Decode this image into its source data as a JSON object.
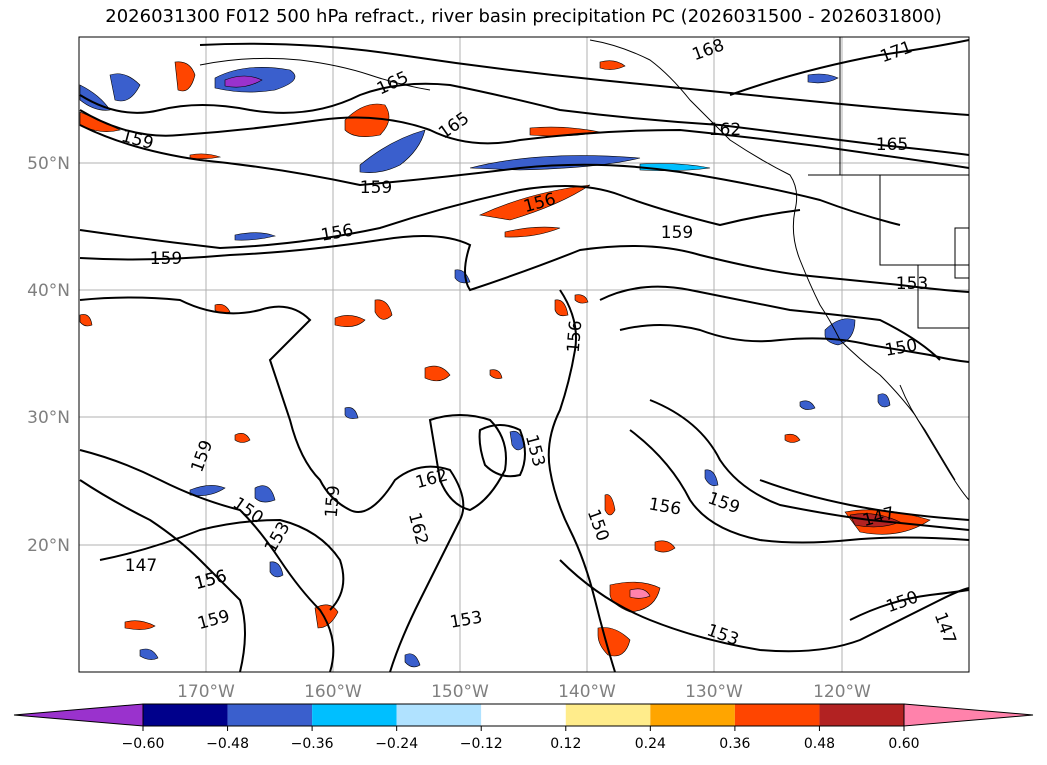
{
  "title": "2026031300 F012 500 hPa refract., river basin precipitation PC (2026031500 - 2026031800)",
  "lat_labels": [
    "50°N",
    "40°N",
    "30°N",
    "20°N"
  ],
  "lon_labels": [
    "170°W",
    "160°W",
    "150°W",
    "140°W",
    "130°W",
    "120°W"
  ],
  "contour_labels": [
    "168",
    "171",
    "165",
    "165",
    "162",
    "165",
    "159",
    "159",
    "156",
    "156",
    "159",
    "159",
    "153",
    "156",
    "150",
    "159",
    "150",
    "162",
    "162",
    "159",
    "153",
    "153",
    "156",
    "150",
    "156",
    "159",
    "147",
    "147",
    "156",
    "159",
    "153",
    "153",
    "150",
    "147"
  ],
  "colorbar": {
    "ticks": [
      "−0.60",
      "−0.48",
      "−0.36",
      "−0.24",
      "−0.12",
      "0.12",
      "0.24",
      "0.36",
      "0.48",
      "0.60"
    ],
    "colors": [
      "#9a32cd",
      "#00008b",
      "#3a5fcd",
      "#00bfff",
      "#b0e2ff",
      "#ffffff",
      "#ffec8b",
      "#ffa500",
      "#ff4500",
      "#b22222",
      "#ff82ab"
    ]
  },
  "colors": {
    "grid": "#b0b0b0",
    "contour": "#000000",
    "coast": "#000000"
  }
}
